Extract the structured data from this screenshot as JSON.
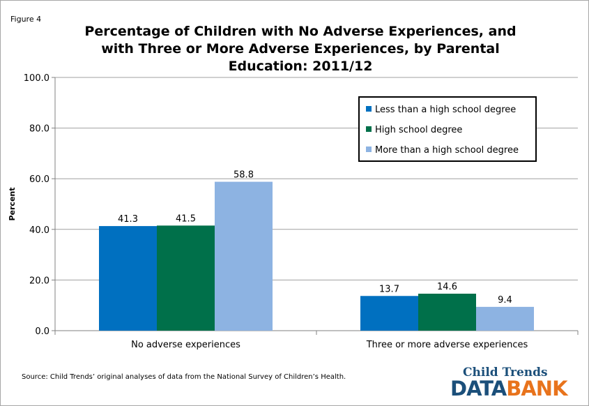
{
  "figure_label": "Figure 4",
  "source_note": "Source: Child Trends’ original analyses of data from the National Survey of Children’s Health.",
  "logo": {
    "top": "Child Trends",
    "bottom_part1": "DATA",
    "bottom_part2": "BANK"
  },
  "colors": {
    "less_hs": "#0070c0",
    "hs": "#00704a",
    "more_hs": "#8db3e2"
  },
  "chart_data": {
    "type": "bar",
    "title": "Percentage of Children with No Adverse Experiences, and with Three or More Adverse Experiences, by Parental Education: 2011/12",
    "xlabel": "",
    "ylabel": "Percent",
    "ylim": [
      0,
      100
    ],
    "yticks": [
      "0.0",
      "20.0",
      "40.0",
      "60.0",
      "80.0",
      "100.0"
    ],
    "grid": true,
    "legend_position": "top-right",
    "categories": [
      "No adverse experiences",
      "Three or more adverse experiences"
    ],
    "series": [
      {
        "name": "Less than a high school degree",
        "values": [
          41.3,
          13.7
        ],
        "labels": [
          "41.3",
          "13.7"
        ]
      },
      {
        "name": "High school degree",
        "values": [
          41.5,
          14.6
        ],
        "labels": [
          "41.5",
          "14.6"
        ]
      },
      {
        "name": "More than a high school degree",
        "values": [
          58.8,
          9.4
        ],
        "labels": [
          "58.8",
          "9.4"
        ]
      }
    ]
  }
}
